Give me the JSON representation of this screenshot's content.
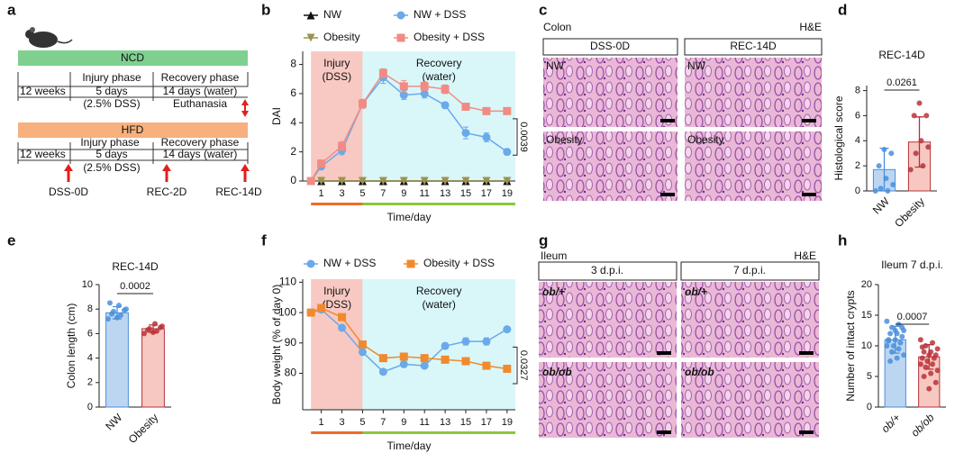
{
  "panel_labels": [
    "a",
    "b",
    "c",
    "d",
    "e",
    "f",
    "g",
    "h"
  ],
  "diagram": {
    "ncd": {
      "title": "NCD",
      "weeks": "12 weeks",
      "injury": "Injury phase",
      "injury_days": "5 days",
      "injury_note": "(2.5% DSS)",
      "recovery": "Recovery phase",
      "recovery_days": "14 days (water)",
      "end": "Euthanasia"
    },
    "hfd": {
      "title": "HFD",
      "weeks": "12 weeks",
      "injury": "Injury phase",
      "injury_days": "5 days",
      "injury_note": "(2.5% DSS)",
      "recovery": "Recovery phase",
      "recovery_days": "14 days (water)"
    },
    "timepoints": [
      "DSS-0D",
      "REC-2D",
      "REC-14D"
    ]
  },
  "images_c": {
    "tissue": "Colon",
    "stain": "H&E",
    "columns": [
      "DSS-0D",
      "REC-14D"
    ],
    "rows": [
      [
        "NW",
        "NW"
      ],
      [
        "Obesity",
        "Obesity"
      ]
    ]
  },
  "images_g": {
    "tissue": "Ileum",
    "stain": "H&E",
    "columns": [
      "3 d.p.i.",
      "7 d.p.i."
    ],
    "rows": [
      [
        "ob/+",
        "ob/+"
      ],
      [
        "ob/ob",
        "ob/ob"
      ]
    ]
  },
  "chart_data": [
    {
      "type": "line",
      "ylabel": "DAI",
      "xlabel": "Time/day",
      "x": [
        0,
        1,
        3,
        5,
        7,
        9,
        11,
        13,
        15,
        17,
        19
      ],
      "xlim": [
        -0.8,
        19.8
      ],
      "xticks": [
        1,
        3,
        5,
        7,
        9,
        11,
        13,
        15,
        17,
        19
      ],
      "ylim": [
        0,
        8.9
      ],
      "yticks": [
        0,
        2,
        4,
        6,
        8
      ],
      "regions": [
        {
          "label": [
            "Injury",
            "(DSS)"
          ],
          "from": 0,
          "to": 5,
          "color": "#f8c9c2",
          "strip_color": "#f06a2a"
        },
        {
          "label": [
            "Recovery",
            "(water)"
          ],
          "from": 5,
          "to": 19.8,
          "color": "#d9f7f9",
          "strip_color": "#8cc63f"
        }
      ],
      "series": [
        {
          "name": "NW",
          "color": "#111111",
          "marker": "triangle",
          "values": [
            0,
            0,
            0,
            0,
            0,
            0,
            0,
            0,
            0,
            0,
            0
          ]
        },
        {
          "name": "NW + DSS",
          "color": "#6aa9ea",
          "marker": "circle",
          "values": [
            0,
            1.0,
            2.1,
            5.3,
            7.1,
            5.9,
            6.0,
            5.2,
            3.3,
            3.0,
            2.0
          ],
          "errors": [
            0,
            0.2,
            0.3,
            0.3,
            0.4,
            0.3,
            0.3,
            0.2,
            0.4,
            0.3,
            0.2
          ]
        },
        {
          "name": "Obesity",
          "color": "#9a9350",
          "marker": "triangle-down",
          "values": [
            0,
            0,
            0,
            0,
            0,
            0,
            0,
            0,
            0,
            0,
            0
          ]
        },
        {
          "name": "Obesity + DSS",
          "color": "#f08c84",
          "marker": "square",
          "values": [
            0,
            1.2,
            2.4,
            5.3,
            7.4,
            6.5,
            6.5,
            6.3,
            5.1,
            4.8,
            4.8
          ],
          "errors": [
            0,
            0.2,
            0.3,
            0.3,
            0.3,
            0.4,
            0.3,
            0.3,
            0.2,
            0.2,
            0.2
          ]
        }
      ],
      "annotation": "0.0039"
    },
    {
      "type": "bar",
      "title": "REC-14D",
      "ylabel": "Histological score",
      "categories": [
        "NW",
        "Obesity"
      ],
      "values": [
        1.7,
        3.9
      ],
      "errors": [
        1.7,
        2.0
      ],
      "points": [
        [
          0,
          0,
          0.2,
          0.5,
          1,
          2,
          3,
          3.3
        ],
        [
          1.7,
          2,
          3,
          3.5,
          4,
          6,
          6,
          7
        ]
      ],
      "colors": [
        "#bcd6f2",
        "#f7c8c2"
      ],
      "edge_colors": [
        "#4a8fdc",
        "#b8323a"
      ],
      "ylim": [
        0,
        8.4
      ],
      "yticks": [
        0,
        2,
        4,
        6,
        8
      ],
      "annotation": "0.0261"
    },
    {
      "type": "bar",
      "title": "REC-14D",
      "ylabel": "Colon length (cm)",
      "categories": [
        "NW",
        "Obesity"
      ],
      "values": [
        7.7,
        6.4
      ],
      "errors": [
        0.5,
        0.3
      ],
      "points": [
        [
          7.2,
          7.5,
          7.8,
          8.0,
          8.3,
          7.6,
          7.9,
          7.3,
          8.5
        ],
        [
          6.0,
          6.2,
          6.4,
          6.6,
          6.8,
          6.3,
          6.5,
          6.1
        ]
      ],
      "colors": [
        "#bcd6f2",
        "#f7c8c2"
      ],
      "edge_colors": [
        "#4a8fdc",
        "#b8323a"
      ],
      "ylim": [
        0,
        10
      ],
      "yticks": [
        0,
        2,
        4,
        6,
        8,
        10
      ],
      "annotation": "0.0002"
    },
    {
      "type": "line",
      "ylabel": "Body weight (% of day 0)",
      "xlabel": "Time/day",
      "x": [
        0,
        1,
        3,
        5,
        7,
        9,
        11,
        13,
        15,
        17,
        19
      ],
      "xlim": [
        -0.8,
        19.8
      ],
      "xticks": [
        1,
        3,
        5,
        7,
        9,
        11,
        13,
        15,
        17,
        19
      ],
      "ylim": [
        68,
        111
      ],
      "yticks": [
        80,
        90,
        100,
        110
      ],
      "regions": [
        {
          "label": [
            "Injury",
            "(DSS)"
          ],
          "from": 0,
          "to": 5,
          "color": "#f8c9c2",
          "strip_color": "#f06a2a"
        },
        {
          "label": [
            "Recovery",
            "(water)"
          ],
          "from": 5,
          "to": 19.8,
          "color": "#d9f7f9",
          "strip_color": "#8cc63f"
        }
      ],
      "series": [
        {
          "name": "NW + DSS",
          "color": "#6aa9ea",
          "marker": "circle",
          "values": [
            100,
            101,
            95,
            87,
            80.5,
            83,
            82.5,
            89,
            90.5,
            90.5,
            94.5
          ],
          "errors": [
            0,
            0.5,
            0.8,
            0.8,
            0.8,
            0.8,
            0.8,
            1.0,
            1.2,
            1.2,
            0.8
          ]
        },
        {
          "name": "Obesity + DSS",
          "color": "#f08a2e",
          "marker": "square",
          "values": [
            100,
            101.5,
            98.5,
            89.5,
            85,
            85.5,
            85,
            84.5,
            84,
            82.5,
            81.5
          ],
          "errors": [
            0,
            0.5,
            0.6,
            0.8,
            0.8,
            0.8,
            0.8,
            0.8,
            0.8,
            0.6,
            0.6
          ]
        }
      ],
      "annotation": "0.0327"
    },
    {
      "type": "bar",
      "title": "Ileum 7 d.p.i.",
      "ylabel": "Number of intact crypts",
      "categories": [
        "ob/+",
        "ob/ob"
      ],
      "italic_categories": true,
      "values": [
        11,
        8.2
      ],
      "errors": [
        2.2,
        2.0
      ],
      "points": [
        [
          14,
          13.5,
          13,
          12.5,
          12,
          12,
          11.5,
          11,
          11,
          10.5,
          10,
          10,
          9.5,
          9,
          8.5,
          8,
          7.5,
          13,
          12.5,
          10.8
        ],
        [
          11,
          10.5,
          10,
          9.5,
          9,
          9,
          8.5,
          8.5,
          8,
          8,
          7.5,
          7,
          7,
          6.5,
          6,
          5.5,
          5,
          4,
          3,
          9.8
        ]
      ],
      "colors": [
        "#bcd6f2",
        "#f7c8c2"
      ],
      "edge_colors": [
        "#4a8fdc",
        "#b8323a"
      ],
      "ylim": [
        0,
        20
      ],
      "yticks": [
        0,
        5,
        10,
        15,
        20
      ],
      "annotation": "0.0007"
    }
  ]
}
